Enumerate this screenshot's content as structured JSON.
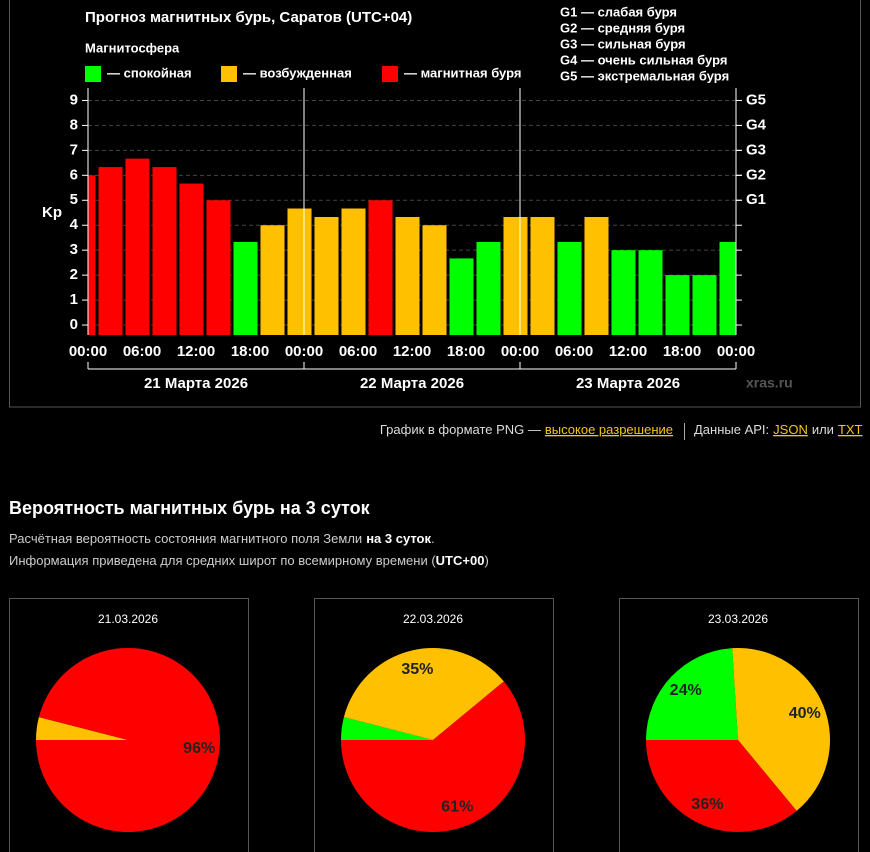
{
  "page": {
    "png_text": "График в формате PNG —",
    "png_link": "высокое разрешение",
    "api_text": "Данные API:",
    "json_link": "JSON",
    "or_text": "или",
    "txt_link": "TXT",
    "section_title": "Вероятность магнитных бурь на 3 суток",
    "desc_1": "Расчётная вероятность состояния магнитного поля Земли",
    "desc_1_bold": "на 3 суток",
    "desc_1_end": ".",
    "desc_2": "Информация приведена для средних широт по всемирному времени (",
    "desc_2_bold": "UTC+00",
    "desc_2_end": ")"
  },
  "chart_data": [
    {
      "type": "bar",
      "title": "Прогноз магнитных бурь, Саратов (UTC+04)",
      "subtitle": "Магнитосфера",
      "legend": [
        {
          "name": "— спокойная",
          "color": "#00ff00"
        },
        {
          "name": "— возбужденная",
          "color": "#ffc000"
        },
        {
          "name": "— магнитная буря",
          "color": "#ff0000"
        }
      ],
      "g_legend": [
        "G1 — слабая буря",
        "G2 — средняя буря",
        "G3 — сильная буря",
        "G4 — очень сильная буря",
        "G5 — экстремальная буря"
      ],
      "ylabel": "Kp",
      "x": [
        -0.5,
        2.5,
        5.5,
        8.5,
        11.5,
        14.5,
        17.5,
        20.5,
        23.5,
        26.5,
        29.5,
        32.5,
        35.5,
        38.5,
        41.5,
        44.5,
        47.5,
        50.5,
        53.5,
        56.5,
        59.5,
        62.5,
        65.5,
        68.5,
        71.5
      ],
      "values": [
        6,
        6.33,
        6.67,
        6.33,
        5.67,
        5,
        3.33,
        4,
        4.67,
        4.33,
        4.67,
        5,
        4.33,
        4,
        2.67,
        3.33,
        4.33,
        4.33,
        3.33,
        4.33,
        3,
        3,
        2,
        2,
        3.33
      ],
      "colors": [
        "#ff0000",
        "#ff0000",
        "#ff0000",
        "#ff0000",
        "#ff0000",
        "#ff0000",
        "#00ff00",
        "#ffc000",
        "#ffc000",
        "#ffc000",
        "#ffc000",
        "#ff0000",
        "#ffc000",
        "#ffc000",
        "#00ff00",
        "#00ff00",
        "#ffc000",
        "#ffc000",
        "#00ff00",
        "#ffc000",
        "#00ff00",
        "#00ff00",
        "#00ff00",
        "#00ff00",
        "#00ff00"
      ],
      "xlim": [
        0,
        72
      ],
      "xticks": [
        {
          "value": 0,
          "label": "00:00"
        },
        {
          "value": 6,
          "label": "06:00"
        },
        {
          "value": 12,
          "label": "12:00"
        },
        {
          "value": 18,
          "label": "18:00"
        },
        {
          "value": 24,
          "label": "00:00"
        },
        {
          "value": 30,
          "label": "06:00"
        },
        {
          "value": 36,
          "label": "12:00"
        },
        {
          "value": 42,
          "label": "18:00"
        },
        {
          "value": 48,
          "label": "00:00"
        },
        {
          "value": 54,
          "label": "06:00"
        },
        {
          "value": 60,
          "label": "12:00"
        },
        {
          "value": 66,
          "label": "18:00"
        },
        {
          "value": 72,
          "label": "00:00"
        }
      ],
      "ylim": [
        -0.4,
        9.5
      ],
      "yticks": [
        0,
        1,
        2,
        3,
        4,
        5,
        6,
        7,
        8,
        9
      ],
      "y2ticks": [
        {
          "value": 5,
          "label": "G1"
        },
        {
          "value": 6,
          "label": "G2"
        },
        {
          "value": 7,
          "label": "G3"
        },
        {
          "value": 8,
          "label": "G4"
        },
        {
          "value": 9,
          "label": "G5"
        }
      ],
      "day_labels": [
        "21 Марта 2026",
        "22 Марта 2026",
        "23 Марта 2026"
      ],
      "watermark": "xras.ru",
      "grid": true
    },
    {
      "type": "pie",
      "title": "21.03.2026",
      "values": [
        4,
        96
      ],
      "colors": [
        "#ffc000",
        "#ff0000"
      ],
      "value_labels": [
        null,
        "96%"
      ]
    },
    {
      "type": "pie",
      "title": "22.03.2026",
      "values": [
        4,
        35,
        61
      ],
      "colors": [
        "#00ff00",
        "#ffc000",
        "#ff0000"
      ],
      "value_labels": [
        null,
        "35%",
        "61%"
      ]
    },
    {
      "type": "pie",
      "title": "23.03.2026",
      "values": [
        24,
        40,
        36
      ],
      "colors": [
        "#00ff00",
        "#ffc000",
        "#ff0000"
      ],
      "value_labels": [
        "24%",
        "40%",
        "36%"
      ]
    }
  ]
}
